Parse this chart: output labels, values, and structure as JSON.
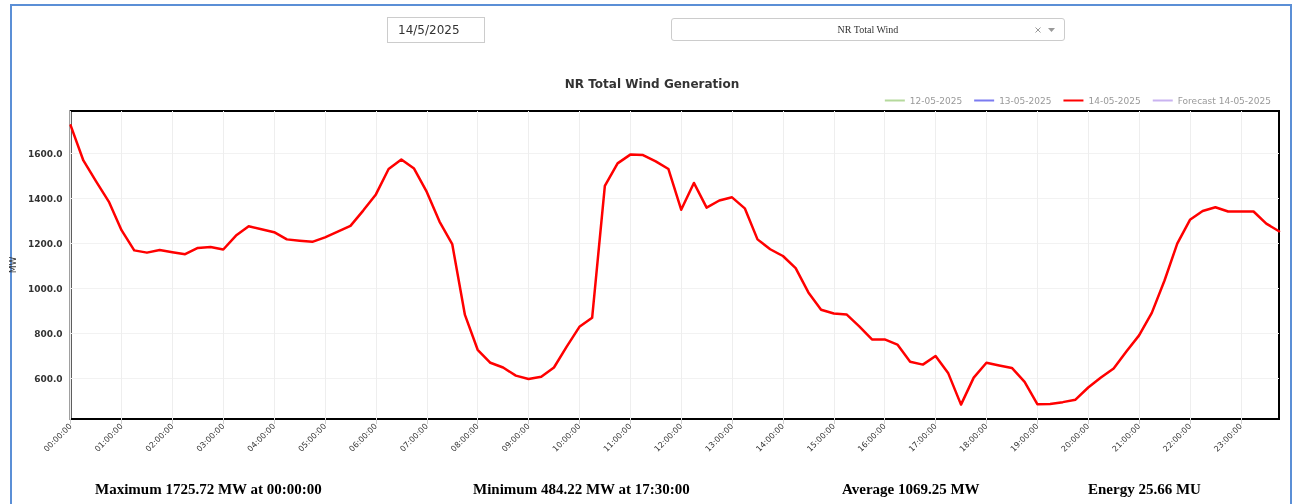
{
  "chart_data": {
    "type": "line",
    "title": "NR Total Wind Generation",
    "ylabel": "MW",
    "x": [
      0,
      0.25,
      0.5,
      0.75,
      1,
      1.25,
      1.5,
      1.75,
      2,
      2.25,
      2.5,
      2.75,
      3,
      3.25,
      3.5,
      3.75,
      4,
      4.25,
      4.5,
      4.75,
      5,
      5.25,
      5.5,
      5.75,
      6,
      6.25,
      6.5,
      6.75,
      7,
      7.25,
      7.5,
      7.75,
      8,
      8.25,
      8.5,
      8.75,
      9,
      9.25,
      9.5,
      9.75,
      10,
      10.25,
      10.5,
      10.75,
      11,
      11.25,
      11.5,
      11.75,
      12,
      12.25,
      12.5,
      12.75,
      13,
      13.25,
      13.5,
      13.75,
      14,
      14.25,
      14.5,
      14.75,
      15,
      15.25,
      15.5,
      15.75,
      16,
      16.25,
      16.5,
      16.75,
      17,
      17.25,
      17.5,
      17.75,
      18,
      18.25,
      18.5,
      18.75,
      19,
      19.25,
      19.5,
      19.75,
      20,
      20.25,
      20.5,
      20.75,
      21,
      21.25,
      21.5,
      21.75,
      22,
      22.25,
      22.5,
      22.75,
      23,
      23.25,
      23.5,
      23.75
    ],
    "series": [
      {
        "name": "12-05-2025",
        "color": "#b5d99c",
        "values": [
          null,
          null,
          null,
          null,
          null,
          null,
          null,
          null,
          null,
          null,
          null,
          null,
          null,
          null,
          null,
          null,
          null,
          null,
          null,
          null,
          null,
          null,
          null,
          null,
          null,
          null,
          null,
          null,
          null,
          null,
          null,
          null,
          null,
          null,
          null,
          null,
          null,
          null,
          null,
          null,
          null,
          null,
          null,
          null,
          null,
          null,
          null,
          null,
          null,
          null,
          null,
          null,
          null,
          null,
          null,
          null,
          null,
          null,
          null,
          null,
          null,
          null,
          null,
          null,
          null,
          null,
          null,
          null,
          null,
          null,
          null,
          null,
          null,
          null,
          null,
          null,
          null,
          null,
          null,
          null,
          null,
          null,
          null,
          null,
          null,
          null,
          null,
          null,
          null,
          null,
          null,
          null,
          null,
          null,
          null,
          null
        ]
      },
      {
        "name": "13-05-2025",
        "color": "#7b7bf0",
        "values": [
          null,
          null,
          null,
          null,
          null,
          null,
          null,
          null,
          null,
          null,
          null,
          null,
          null,
          null,
          null,
          null,
          null,
          null,
          null,
          null,
          null,
          null,
          null,
          null,
          null,
          null,
          null,
          null,
          null,
          null,
          null,
          null,
          null,
          null,
          null,
          null,
          null,
          null,
          null,
          null,
          null,
          null,
          null,
          null,
          null,
          null,
          null,
          null,
          null,
          null,
          null,
          null,
          null,
          null,
          null,
          null,
          null,
          null,
          null,
          null,
          null,
          null,
          null,
          null,
          null,
          null,
          null,
          null,
          null,
          null,
          null,
          null,
          null,
          null,
          null,
          null,
          null,
          null,
          null,
          null,
          null,
          null,
          null,
          null,
          null,
          null,
          null,
          null,
          null,
          null,
          null,
          null,
          null,
          null,
          null,
          null
        ]
      },
      {
        "name": "14-05-2025",
        "color": "#ff0000",
        "values": [
          1726,
          1570,
          1477,
          1387,
          1260,
          1170,
          1160,
          1172,
          1162,
          1153,
          1181,
          1185,
          1174,
          1236,
          1277,
          1264,
          1251,
          1219,
          1213,
          1208,
          1228,
          1253,
          1279,
          1347,
          1419,
          1532,
          1574,
          1534,
          1430,
          1298,
          1198,
          883,
          728,
          670,
          649,
          613,
          598,
          608,
          649,
          742,
          830,
          870,
          1457,
          1557,
          1596,
          1594,
          1566,
          1532,
          1351,
          1470,
          1360,
          1392,
          1406,
          1357,
          1219,
          1175,
          1145,
          1091,
          983,
          906,
          889,
          885,
          832,
          774,
          774,
          751,
          675,
          662,
          700,
          623,
          484,
          604,
          670,
          658,
          647,
          585,
          486,
          487,
          495,
          506,
          560,
          605,
          645,
          720,
          792,
          892,
          1036,
          1200,
          1306,
          1345,
          1362,
          1343,
          1343,
          1343,
          1289,
          1255
        ]
      },
      {
        "name": "Forecast 14-05-2025",
        "color": "#c9b3f0",
        "values": [
          null,
          null,
          null,
          null,
          null,
          null,
          null,
          null,
          null,
          null,
          null,
          null,
          null,
          null,
          null,
          null,
          null,
          null,
          null,
          null,
          null,
          null,
          null,
          null,
          null,
          null,
          null,
          null,
          null,
          null,
          null,
          null,
          null,
          null,
          null,
          null,
          null,
          null,
          null,
          null,
          null,
          null,
          null,
          null,
          null,
          null,
          null,
          null,
          null,
          null,
          null,
          null,
          null,
          null,
          null,
          null,
          null,
          null,
          null,
          null,
          null,
          null,
          null,
          null,
          null,
          null,
          null,
          null,
          null,
          null,
          null,
          null,
          null,
          null,
          null,
          null,
          null,
          null,
          null,
          null,
          null,
          null,
          null,
          null,
          null,
          null,
          null,
          null,
          null,
          null,
          null,
          null,
          null,
          null,
          null,
          null
        ]
      }
    ],
    "xlim": [
      0,
      23.75
    ],
    "xticks": [
      {
        "value": 0,
        "label": "00:00:00"
      },
      {
        "value": 1,
        "label": "01:00:00"
      },
      {
        "value": 2,
        "label": "02:00:00"
      },
      {
        "value": 3,
        "label": "03:00:00"
      },
      {
        "value": 4,
        "label": "04:00:00"
      },
      {
        "value": 5,
        "label": "05:00:00"
      },
      {
        "value": 6,
        "label": "06:00:00"
      },
      {
        "value": 7,
        "label": "07:00:00"
      },
      {
        "value": 8,
        "label": "08:00:00"
      },
      {
        "value": 9,
        "label": "09:00:00"
      },
      {
        "value": 10,
        "label": "10:00:00"
      },
      {
        "value": 11,
        "label": "11:00:00"
      },
      {
        "value": 12,
        "label": "12:00:00"
      },
      {
        "value": 13,
        "label": "13:00:00"
      },
      {
        "value": 14,
        "label": "14:00:00"
      },
      {
        "value": 15,
        "label": "15:00:00"
      },
      {
        "value": 16,
        "label": "16:00:00"
      },
      {
        "value": 17,
        "label": "17:00:00"
      },
      {
        "value": 18,
        "label": "18:00:00"
      },
      {
        "value": 19,
        "label": "19:00:00"
      },
      {
        "value": 20,
        "label": "20:00:00"
      },
      {
        "value": 21,
        "label": "21:00:00"
      },
      {
        "value": 22,
        "label": "22:00:00"
      },
      {
        "value": 23,
        "label": "23:00:00"
      }
    ],
    "ylim": [
      420,
      1790
    ],
    "yticks": [
      {
        "value": 600,
        "label": "600.0"
      },
      {
        "value": 800,
        "label": "800.0"
      },
      {
        "value": 1000,
        "label": "1000.0"
      },
      {
        "value": 1200,
        "label": "1200.0"
      },
      {
        "value": 1400,
        "label": "1400.0"
      },
      {
        "value": 1600,
        "label": "1600.0"
      }
    ],
    "annotations": [
      "14/5/2025",
      "NR Total Wind",
      "Maximum 1725.72 MW at 00:00:00",
      "Minimum 484.22 MW at 17:30:00",
      "Average 1069.25 MW",
      "Energy 25.66 MU"
    ],
    "grid": true,
    "legend": "top right",
    "marker": "none",
    "line_style": "solid"
  }
}
